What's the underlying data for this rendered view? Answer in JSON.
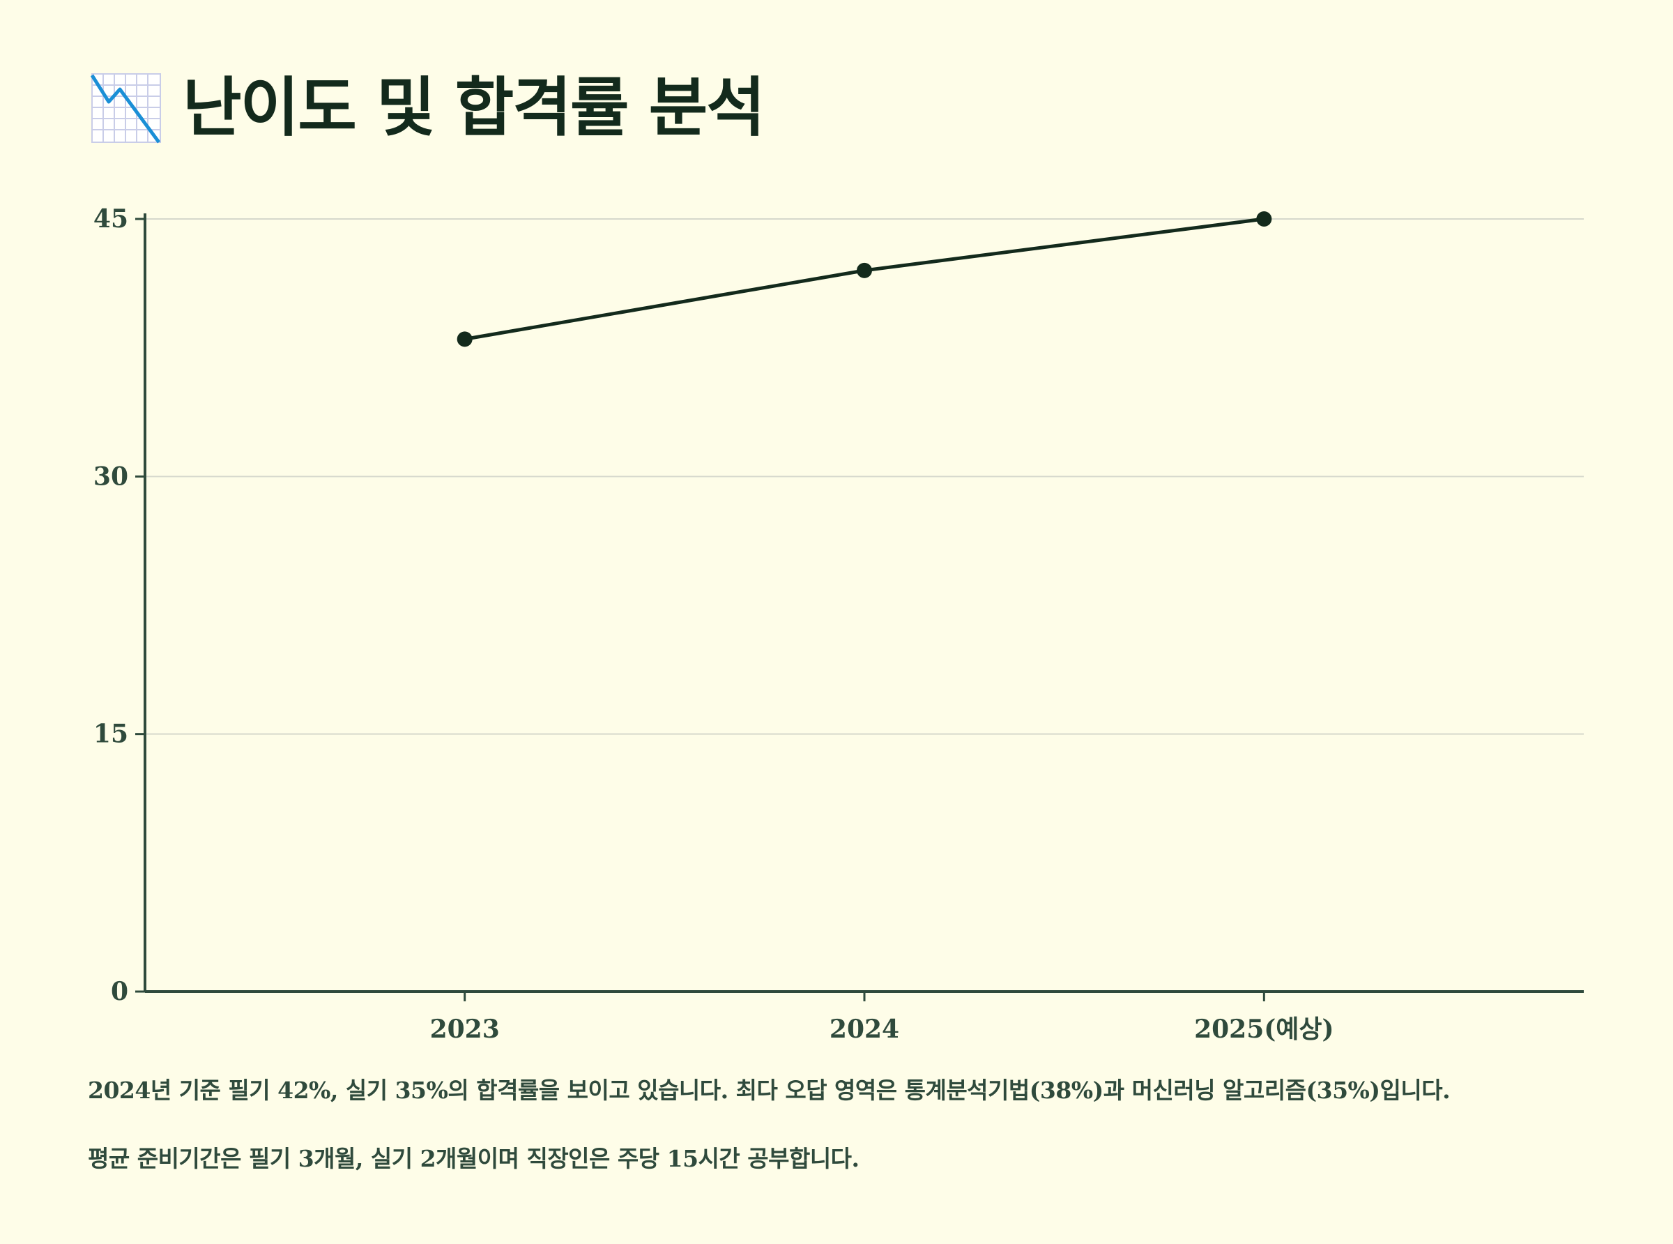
{
  "header": {
    "icon": "chart-decreasing-icon",
    "title": "난이도 및 합격률 분석"
  },
  "chart_data": {
    "type": "line",
    "title": "",
    "xlabel": "",
    "ylabel": "",
    "categories": [
      "2023",
      "2024",
      "2025(예상)"
    ],
    "series": [
      {
        "values": [
          38,
          42,
          45
        ]
      }
    ],
    "ylim": [
      0,
      45
    ],
    "yticks": [
      0,
      15,
      30,
      45
    ],
    "grid": true,
    "legend": "none",
    "colors": {
      "line": "#132a1c",
      "axis": "#2f4a3c",
      "grid": "#d6d8cc"
    }
  },
  "description": {
    "line1": "2024년 기준 필기 42%, 실기 35%의 합격률을 보이고 있습니다. 최다 오답 영역은 통계분석기법(38%)과 머신러닝 알고리즘(35%)입니다.",
    "line2": "평균 준비기간은 필기 3개월, 실기 2개월이며 직장인은 주당 15시간 공부합니다."
  }
}
